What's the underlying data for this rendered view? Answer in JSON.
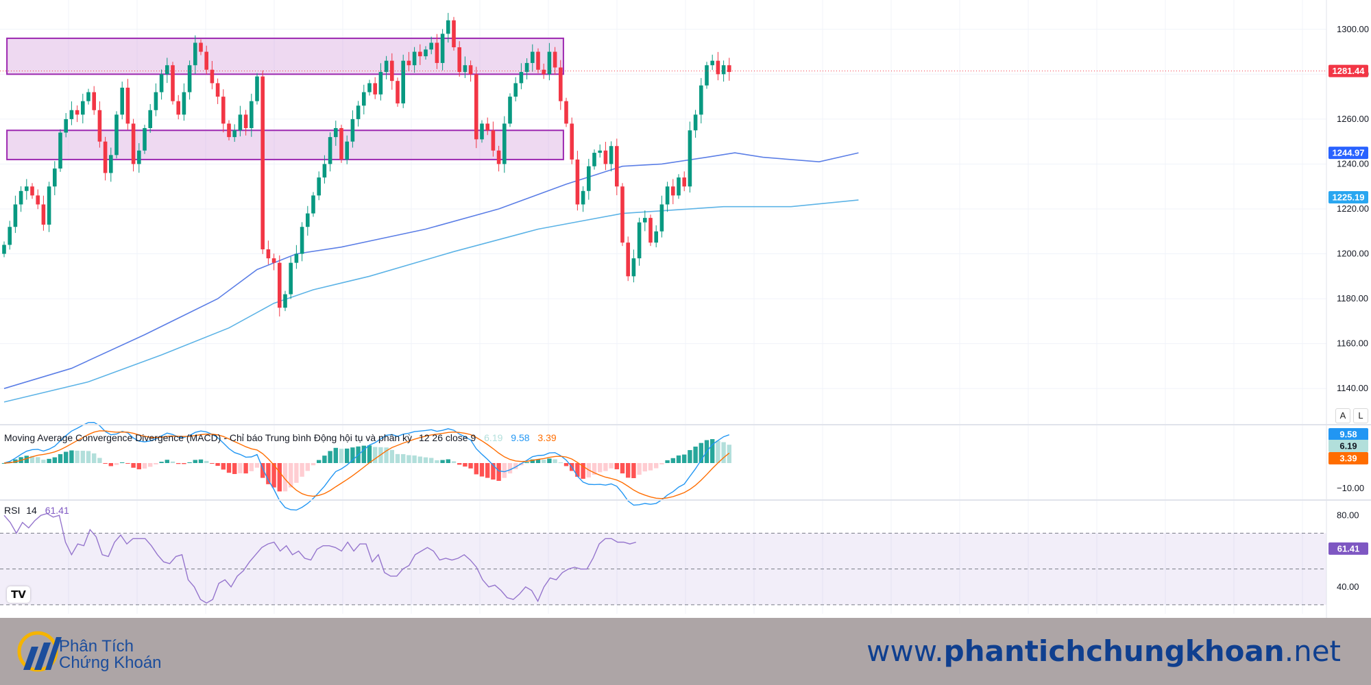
{
  "chart_data": {
    "type": "candlestick",
    "main": {
      "ylim": [
        1130,
        1310
      ],
      "yticks": [
        1140,
        1160,
        1180,
        1200,
        1220,
        1240,
        1260,
        1280,
        1300
      ],
      "ytick_labels": [
        "1140.00",
        "1160.00",
        "1180.00",
        "1200.00",
        "1220.00",
        "1240.00",
        "1260.00",
        "1280.00",
        "1300.00"
      ],
      "price_labels": [
        {
          "label": "1281.44",
          "value": 1281.44,
          "color": "#f23645"
        },
        {
          "label": "1244.97",
          "value": 1244.97,
          "color": "#2962ff"
        },
        {
          "label": "1225.19",
          "value": 1225.19,
          "color": "#29a6f0"
        }
      ],
      "zones": [
        {
          "from_index": 0.5,
          "to_index": 99.5,
          "low": 1280,
          "high": 1296
        },
        {
          "from_index": 0.5,
          "to_index": 99.5,
          "low": 1242,
          "high": 1255
        }
      ],
      "closes": [
        1204,
        1212,
        1222,
        1228,
        1230,
        1226,
        1222,
        1213,
        1230,
        1238,
        1254,
        1260,
        1264,
        1262,
        1268,
        1272,
        1264,
        1250,
        1236,
        1244,
        1262,
        1274,
        1258,
        1240,
        1246,
        1256,
        1264,
        1272,
        1280,
        1284,
        1268,
        1262,
        1272,
        1284,
        1294,
        1290,
        1282,
        1276,
        1270,
        1258,
        1252,
        1255,
        1262,
        1256,
        1268,
        1279,
        1202,
        1198,
        1196,
        1176,
        1182,
        1196,
        1200,
        1212,
        1218,
        1226,
        1234,
        1240,
        1252,
        1256,
        1242,
        1250,
        1260,
        1266,
        1272,
        1276,
        1271,
        1281,
        1286,
        1277,
        1267,
        1286,
        1284,
        1290,
        1288,
        1291,
        1294,
        1285,
        1298,
        1304,
        1292,
        1281,
        1284,
        1280,
        1251,
        1258,
        1255,
        1246,
        1240,
        1258,
        1270,
        1276,
        1281,
        1285,
        1290,
        1282,
        1280,
        1290,
        1283,
        1268,
        1258,
        1242,
        1222,
        1228,
        1239,
        1245,
        1246,
        1240,
        1248,
        1230,
        1205,
        1190,
        1198,
        1214,
        1216,
        1205,
        1210,
        1222,
        1230,
        1226,
        1234,
        1230,
        1255,
        1262,
        1275,
        1284,
        1286,
        1280,
        1284,
        1281
      ],
      "ma": [
        {
          "name": "MA1",
          "color": "#5b7ee6",
          "points": [
            [
              0,
              1140
            ],
            [
              12,
              1149
            ],
            [
              25,
              1164
            ],
            [
              38,
              1180
            ],
            [
              45,
              1193
            ],
            [
              52,
              1200
            ],
            [
              60,
              1203
            ],
            [
              75,
              1211
            ],
            [
              88,
              1220
            ],
            [
              100,
              1231
            ],
            [
              110,
              1239
            ],
            [
              117,
              1240
            ],
            [
              125,
              1243
            ],
            [
              130,
              1245
            ],
            [
              135,
              1243
            ],
            [
              145,
              1241
            ],
            [
              152,
              1245
            ]
          ]
        },
        {
          "name": "MA2",
          "color": "#5cb3e6",
          "points": [
            [
              0,
              1134
            ],
            [
              15,
              1143
            ],
            [
              28,
              1155
            ],
            [
              40,
              1167
            ],
            [
              48,
              1178
            ],
            [
              55,
              1184
            ],
            [
              65,
              1190
            ],
            [
              80,
              1201
            ],
            [
              95,
              1211
            ],
            [
              110,
              1218
            ],
            [
              128,
              1221
            ],
            [
              140,
              1221
            ],
            [
              152,
              1224
            ]
          ]
        }
      ]
    },
    "macd": {
      "title": "Moving Average Convergence Divergence (MACD) - Chỉ báo Trung bình Động hội tụ và phân kỳ",
      "params": "12 26 close 9",
      "values": [
        "6.19",
        "9.58",
        "3.39"
      ],
      "ylim": [
        -14,
        14
      ],
      "ytick_label": "−10.00",
      "ytick_value": -10,
      "price_labels": [
        {
          "label": "9.58",
          "value": 9.58,
          "color": "#2196f3"
        },
        {
          "label": "6.19",
          "value": 6.19,
          "color": "#b2dfdb"
        },
        {
          "label": "3.39",
          "value": 3.39,
          "color": "#ff6d00"
        }
      ]
    },
    "rsi": {
      "title": "RSI",
      "period": "14",
      "value": "61.41",
      "ylim": [
        25,
        87
      ],
      "yticks": [
        40,
        80
      ],
      "ytick_labels": [
        "40.00",
        "80.00"
      ],
      "bands": [
        30,
        50,
        70
      ],
      "line": [
        80,
        76,
        70,
        76,
        73,
        77,
        80,
        81,
        79,
        80,
        65,
        58,
        64,
        63,
        72,
        68,
        58,
        57,
        65,
        69,
        64,
        67,
        67,
        67,
        63,
        58,
        54,
        53,
        57,
        58,
        44,
        40,
        33,
        31,
        33,
        42,
        44,
        40,
        46,
        49,
        54,
        58,
        62,
        64,
        65,
        60,
        63,
        58,
        60,
        56,
        55,
        61,
        63,
        63,
        62,
        60,
        65,
        60,
        64,
        64,
        54,
        58,
        48,
        46,
        46,
        50,
        52,
        58,
        60,
        62,
        60,
        55,
        56,
        55,
        56,
        58,
        55,
        51,
        44,
        40,
        41,
        38,
        34,
        33,
        36,
        40,
        38,
        32,
        40,
        45,
        44,
        48,
        50,
        51,
        50,
        50,
        56,
        64,
        67,
        67,
        65,
        65,
        64,
        65
      ],
      "line_color": "#9575cd"
    }
  },
  "ui": {
    "auto_scale": "A",
    "log_scale": "L",
    "tradingview": "TV"
  },
  "footer": {
    "logo_line1": "Phân Tích",
    "logo_line2": "Chứng Khoán",
    "site_prefix": "www.",
    "site_bold": "phantichchungkhoan",
    "site_suffix": ".net"
  }
}
